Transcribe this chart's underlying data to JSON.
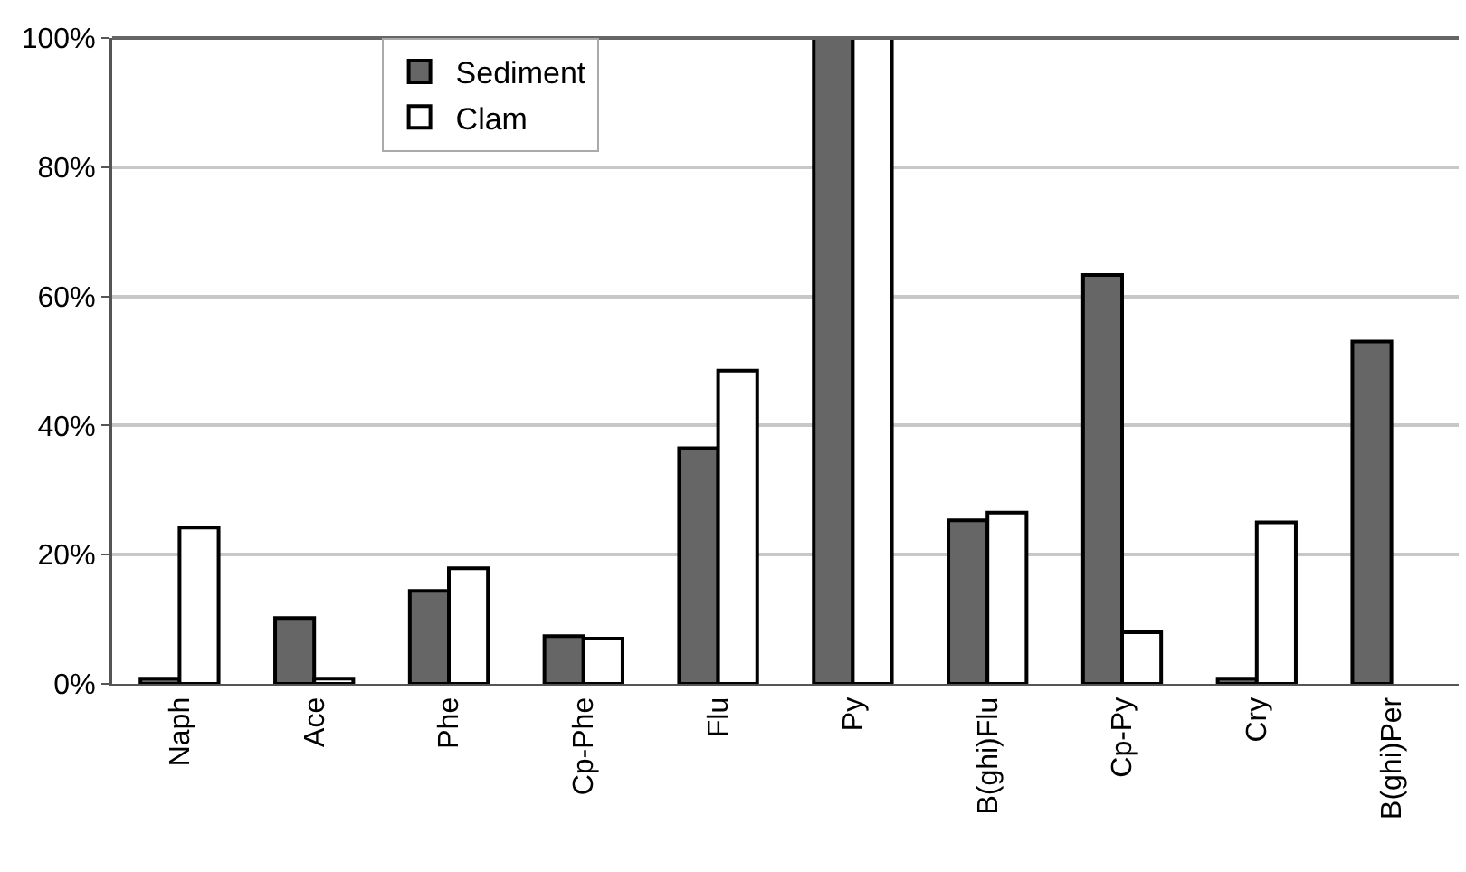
{
  "chart_data": {
    "type": "bar",
    "categories": [
      "Naph",
      "Ace",
      "Phe",
      "Cp-Phe",
      "Flu",
      "Py",
      "B(ghi)Flu",
      "Cp-Py",
      "Cry",
      "B(ghi)Per"
    ],
    "series": [
      {
        "name": "Sediment",
        "color": "#666666",
        "values": [
          0.8,
          10.2,
          14.4,
          7.4,
          36.5,
          100,
          25.3,
          63.3,
          0.8,
          53.0
        ]
      },
      {
        "name": "Clam",
        "color": "#ffffff",
        "values": [
          24.2,
          0.8,
          17.9,
          7.0,
          48.5,
          100,
          26.5,
          8.0,
          25.0,
          null
        ]
      }
    ],
    "ylim": [
      0,
      100
    ],
    "yticks": [
      {
        "value": 0,
        "label": "0%"
      },
      {
        "value": 20,
        "label": "20%"
      },
      {
        "value": 40,
        "label": "40%"
      },
      {
        "value": 60,
        "label": "60%"
      },
      {
        "value": 80,
        "label": "80%"
      },
      {
        "value": 100,
        "label": "100%"
      }
    ],
    "grid": "y",
    "legend": "top left"
  }
}
